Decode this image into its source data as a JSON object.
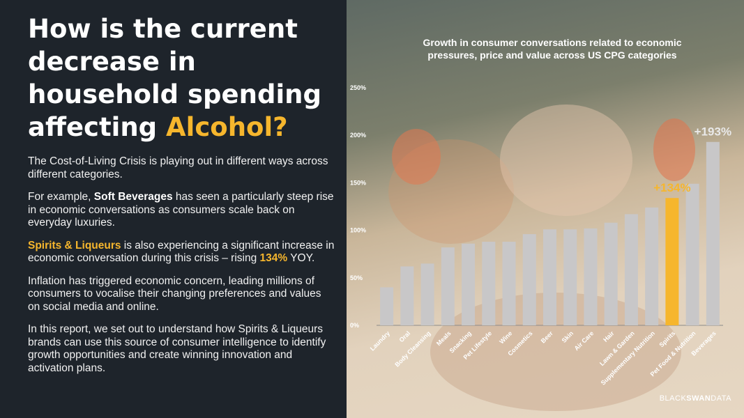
{
  "heading": {
    "line1": "How is the current",
    "line2": "decrease in",
    "line3": "household spending",
    "line4_prefix": "affecting ",
    "line4_highlight": "Alcohol?"
  },
  "body": {
    "p1": "The Cost-of-Living Crisis is playing out in different ways across different categories.",
    "p2_prefix": "For example, ",
    "p2_bold": "Soft Beverages",
    "p2_suffix": " has seen a particularly steep rise in economic conversations as consumers scale back on everyday luxuries.",
    "p3_highlight": "Spirits & Liqueurs",
    "p3_middle": " is also experiencing a significant increase in economic conversation during this crisis – rising ",
    "p3_value": "134%",
    "p3_suffix": " YOY.",
    "p4": "Inflation has triggered economic concern, leading millions of consumers to vocalise their changing preferences and values on social media and online.",
    "p5": "In this report, we set out to understand how Spirits & Liqueurs brands can use this source of consumer intelligence to identify growth opportunities and create winning innovation and activation plans."
  },
  "brand": {
    "part1": "BLACK",
    "part2": "SWAN",
    "part3": "DATA"
  },
  "colors": {
    "left_panel": "#1e242b",
    "accent": "#f6b62d",
    "bar": "#c8c7c8"
  },
  "chart_data": {
    "type": "bar",
    "title": "Growth in consumer conversations related to economic pressures, price and value across US CPG categories",
    "categories": [
      "Laundry",
      "Oral",
      "Body Cleansing",
      "Meals",
      "Snacking",
      "Pet Lifestyle",
      "Wine",
      "Cosmetics",
      "Beer",
      "Skin",
      "Air Care",
      "Hair",
      "Lawn & Garden",
      "Supplementary Nutrition",
      "Spirits",
      "Pet Food & Nutrition",
      "Beverages"
    ],
    "values": [
      40,
      62,
      65,
      82,
      86,
      88,
      88,
      96,
      101,
      101,
      102,
      108,
      117,
      124,
      134,
      149,
      193
    ],
    "highlight_index": 14,
    "yticks": [
      "0%",
      "50%",
      "100%",
      "150%",
      "200%",
      "250%"
    ],
    "ylim": [
      0,
      250
    ],
    "annotations": [
      {
        "category": "Spirits",
        "label": "+134%",
        "color": "#f6b62d"
      },
      {
        "category": "Beverages",
        "label": "+193%",
        "color": "#e9e9e9"
      }
    ],
    "grid": false
  }
}
